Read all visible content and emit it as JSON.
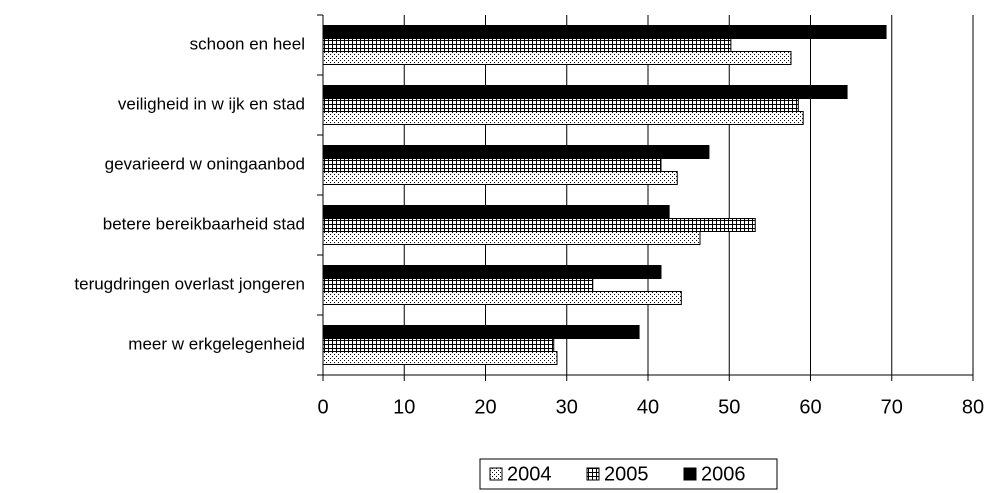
{
  "chart_data": {
    "type": "barh",
    "categories": [
      "schoon en heel",
      "veiligheid in w ijk en stad",
      "gevarieerd w oningaanbod",
      "betere bereikbaarheid stad",
      "terugdringen overlast jongeren",
      "meer w erkgelegenheid"
    ],
    "series": [
      {
        "name": "2004",
        "color": "#000000",
        "pattern": "dots",
        "values": [
          57.6,
          59.1,
          43.6,
          46.4,
          44.1,
          28.8
        ]
      },
      {
        "name": "2005",
        "color": "#000000",
        "pattern": "grid",
        "values": [
          50.2,
          58.5,
          41.6,
          53.2,
          33.2,
          28.4
        ]
      },
      {
        "name": "2006",
        "color": "#000000",
        "pattern": "solid",
        "values": [
          69.3,
          64.5,
          47.5,
          42.6,
          41.6,
          38.9
        ]
      }
    ],
    "xlim": [
      0,
      80
    ],
    "xticks": [
      0,
      10,
      20,
      30,
      40,
      50,
      60,
      70,
      80
    ],
    "grid": true,
    "legend": "bottom"
  }
}
